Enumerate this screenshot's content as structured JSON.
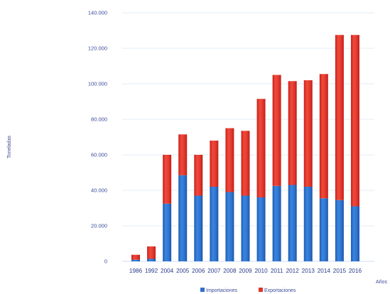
{
  "chart_data": {
    "type": "bar",
    "stacked": true,
    "categories": [
      "1986",
      "1992",
      "2004",
      "2005",
      "2006",
      "2007",
      "2008",
      "2009",
      "2010",
      "2011",
      "2012",
      "2013",
      "2014",
      "2015",
      "2016"
    ],
    "series": [
      {
        "name": "Importaciones",
        "color": "#2f6fc9",
        "values": [
          900,
          1400,
          32500,
          48500,
          37000,
          42000,
          39000,
          37000,
          36000,
          42500,
          43000,
          42000,
          35500,
          34500,
          31000
        ]
      },
      {
        "name": "Exportaciones",
        "color": "#e0352b",
        "values": [
          2800,
          7000,
          27500,
          23000,
          23000,
          26000,
          36000,
          36500,
          55500,
          62500,
          58500,
          60000,
          70000,
          93000,
          96500
        ]
      }
    ],
    "xlabel": "Años",
    "ylabel": "Toneladas",
    "ylim": [
      0,
      140000
    ],
    "yticks": [
      0,
      20000,
      40000,
      60000,
      80000,
      100000,
      120000,
      140000
    ],
    "ytick_labels": [
      "0",
      "20.000",
      "40.000",
      "60.000",
      "80.000",
      "100.000",
      "120.000",
      "140.000"
    ],
    "grid": true,
    "legend_position": "bottom-center"
  }
}
